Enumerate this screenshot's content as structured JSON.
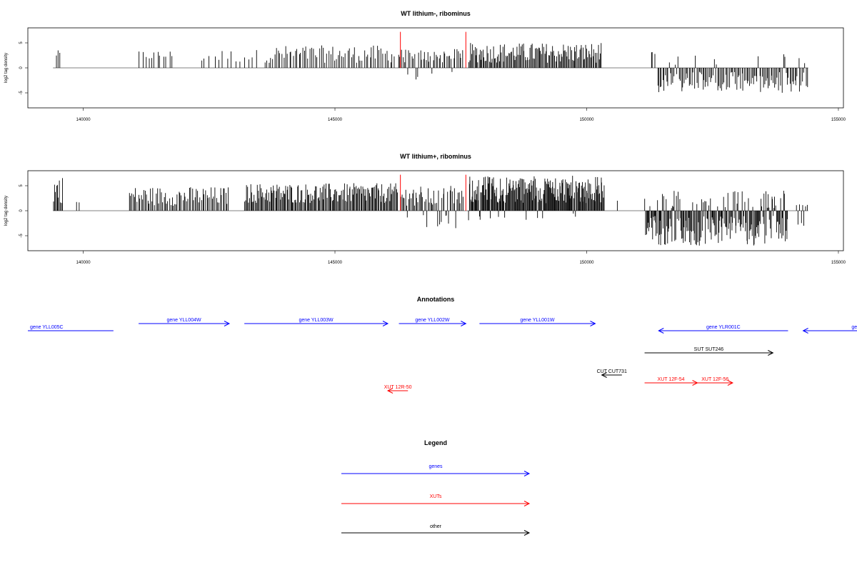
{
  "chart_data": [
    {
      "type": "bar",
      "title": "WT lithium-, ribominus",
      "xlabel": "",
      "ylabel": "log2 tag density",
      "xlim": [
        138900,
        155100
      ],
      "ylim": [
        -8,
        8
      ],
      "xticks": [
        140000,
        145000,
        150000,
        155000
      ],
      "yticks": [
        5,
        0,
        -5
      ],
      "xtick_labels": [
        "140000",
        "145000",
        "150000",
        "155000"
      ],
      "ytick_labels": [
        "5",
        "0",
        "-5"
      ],
      "baseline": {
        "x": [
          139400,
          154400
        ],
        "color": "#808080"
      },
      "bar_color": "#000000",
      "segments": [
        {
          "x": [
            139450,
            139550
          ],
          "n": 3,
          "pos": [
            2.0,
            3.5
          ]
        },
        {
          "x": [
            141100,
            141800
          ],
          "n": 12,
          "pos": [
            1.5,
            3.5
          ]
        },
        {
          "x": [
            142300,
            143500
          ],
          "n": 14,
          "pos": [
            1.0,
            3.7
          ]
        },
        {
          "x": [
            143600,
            146200
          ],
          "n": 70,
          "pos": [
            1.0,
            4.5
          ]
        },
        {
          "x": [
            146250,
            147550
          ],
          "n": 45,
          "pos": [
            1.0,
            3.8
          ],
          "neg": [
            0.5,
            2.5
          ],
          "neg_ratio": 0.1
        },
        {
          "x": [
            147650,
            150300
          ],
          "n": 130,
          "pos": [
            1.0,
            5.0
          ]
        },
        {
          "x": [
            151250,
            151400
          ],
          "n": 3,
          "pos": [
            2.0,
            3.2
          ]
        },
        {
          "x": [
            151400,
            154400
          ],
          "n": 120,
          "pos": [
            0.5,
            2.8
          ],
          "neg": [
            0.8,
            5.0
          ],
          "neg_ratio": 0.9
        }
      ],
      "red_lines": [
        {
          "x": 146300,
          "y": 7.2
        },
        {
          "x": 147600,
          "y": 7.2
        }
      ]
    },
    {
      "type": "bar",
      "title": "WT lithium+, ribominus",
      "xlabel": "",
      "ylabel": "log2 tag density",
      "xlim": [
        138900,
        155100
      ],
      "ylim": [
        -8,
        8
      ],
      "xticks": [
        140000,
        145000,
        150000,
        155000
      ],
      "yticks": [
        5,
        0,
        -5
      ],
      "xtick_labels": [
        "140000",
        "145000",
        "150000",
        "155000"
      ],
      "ytick_labels": [
        "5",
        "0",
        "-5"
      ],
      "baseline": {
        "x": [
          139400,
          154400
        ],
        "color": "#808080"
      },
      "bar_color": "#000000",
      "segments": [
        {
          "x": [
            139400,
            139600
          ],
          "n": 10,
          "pos": [
            1.5,
            7.0
          ]
        },
        {
          "x": [
            139800,
            140000
          ],
          "n": 2,
          "pos": [
            1.5,
            2.0
          ]
        },
        {
          "x": [
            140900,
            142900
          ],
          "n": 75,
          "pos": [
            1.0,
            4.8
          ]
        },
        {
          "x": [
            143200,
            146250
          ],
          "n": 160,
          "pos": [
            1.5,
            5.5
          ]
        },
        {
          "x": [
            146300,
            147550
          ],
          "n": 55,
          "pos": [
            1.0,
            5.0
          ],
          "neg": [
            0.5,
            3.5
          ],
          "neg_ratio": 0.2
        },
        {
          "x": [
            147650,
            150350
          ],
          "n": 200,
          "pos": [
            1.5,
            7.0
          ],
          "neg": [
            0.5,
            2.0
          ],
          "neg_ratio": 0.05
        },
        {
          "x": [
            150600,
            150650
          ],
          "n": 1,
          "pos": [
            2.0,
            2.0
          ]
        },
        {
          "x": [
            151150,
            154000
          ],
          "n": 190,
          "pos": [
            0.5,
            4.0
          ],
          "neg": [
            1.0,
            7.0
          ],
          "neg_ratio": 0.85
        },
        {
          "x": [
            154150,
            154400
          ],
          "n": 8,
          "pos": [
            0.5,
            1.6
          ],
          "neg": [
            1.5,
            3.5
          ],
          "neg_ratio": 0.6
        }
      ],
      "red_lines": [
        {
          "x": 146300,
          "y": 7.2
        },
        {
          "x": 147600,
          "y": 7.2
        }
      ]
    }
  ],
  "annotations": {
    "title": "Annotations",
    "items": [
      {
        "label": "gene YLL005C",
        "start": 138900,
        "end": 140600,
        "dir": "none",
        "color": "#0000ff",
        "row": 2
      },
      {
        "label": "gene YLL004W",
        "start": 141100,
        "end": 142900,
        "dir": "right",
        "color": "#0000ff",
        "row": 1
      },
      {
        "label": "gene YLL003W",
        "start": 143200,
        "end": 146050,
        "dir": "right",
        "color": "#0000ff",
        "row": 1
      },
      {
        "label": "gene YLL002W",
        "start": 146270,
        "end": 147600,
        "dir": "right",
        "color": "#0000ff",
        "row": 1
      },
      {
        "label": "gene YLL001W",
        "start": 147870,
        "end": 150170,
        "dir": "right",
        "color": "#0000ff",
        "row": 1
      },
      {
        "label": "gene YLR001C",
        "start": 151430,
        "end": 154000,
        "dir": "left",
        "color": "#0000ff",
        "row": 2
      },
      {
        "label": "ge",
        "start": 154300,
        "end": 155400,
        "dir": "left",
        "color": "#0000ff",
        "row": 2
      },
      {
        "label": "SUT SUT246",
        "start": 151150,
        "end": 153700,
        "dir": "right",
        "color": "#000000",
        "row": 3
      },
      {
        "label": "CUT CUT731",
        "start": 150300,
        "end": 150700,
        "dir": "left",
        "color": "#000000",
        "row": 4
      },
      {
        "label": "XUT 12F-54",
        "start": 151150,
        "end": 152200,
        "dir": "right",
        "color": "#ff0000",
        "row": 5
      },
      {
        "label": "XUT 12F-56",
        "start": 152200,
        "end": 152900,
        "dir": "right",
        "color": "#ff0000",
        "row": 5
      },
      {
        "label": "XUT 12R-50",
        "start": 146050,
        "end": 146450,
        "dir": "left",
        "color": "#ff0000",
        "row": 6
      }
    ]
  },
  "legend": {
    "title": "Legend",
    "entries": [
      {
        "label": "genes",
        "color": "#0000ff"
      },
      {
        "label": "XUTs",
        "color": "#ff0000"
      },
      {
        "label": "other",
        "color": "#000000"
      }
    ]
  }
}
